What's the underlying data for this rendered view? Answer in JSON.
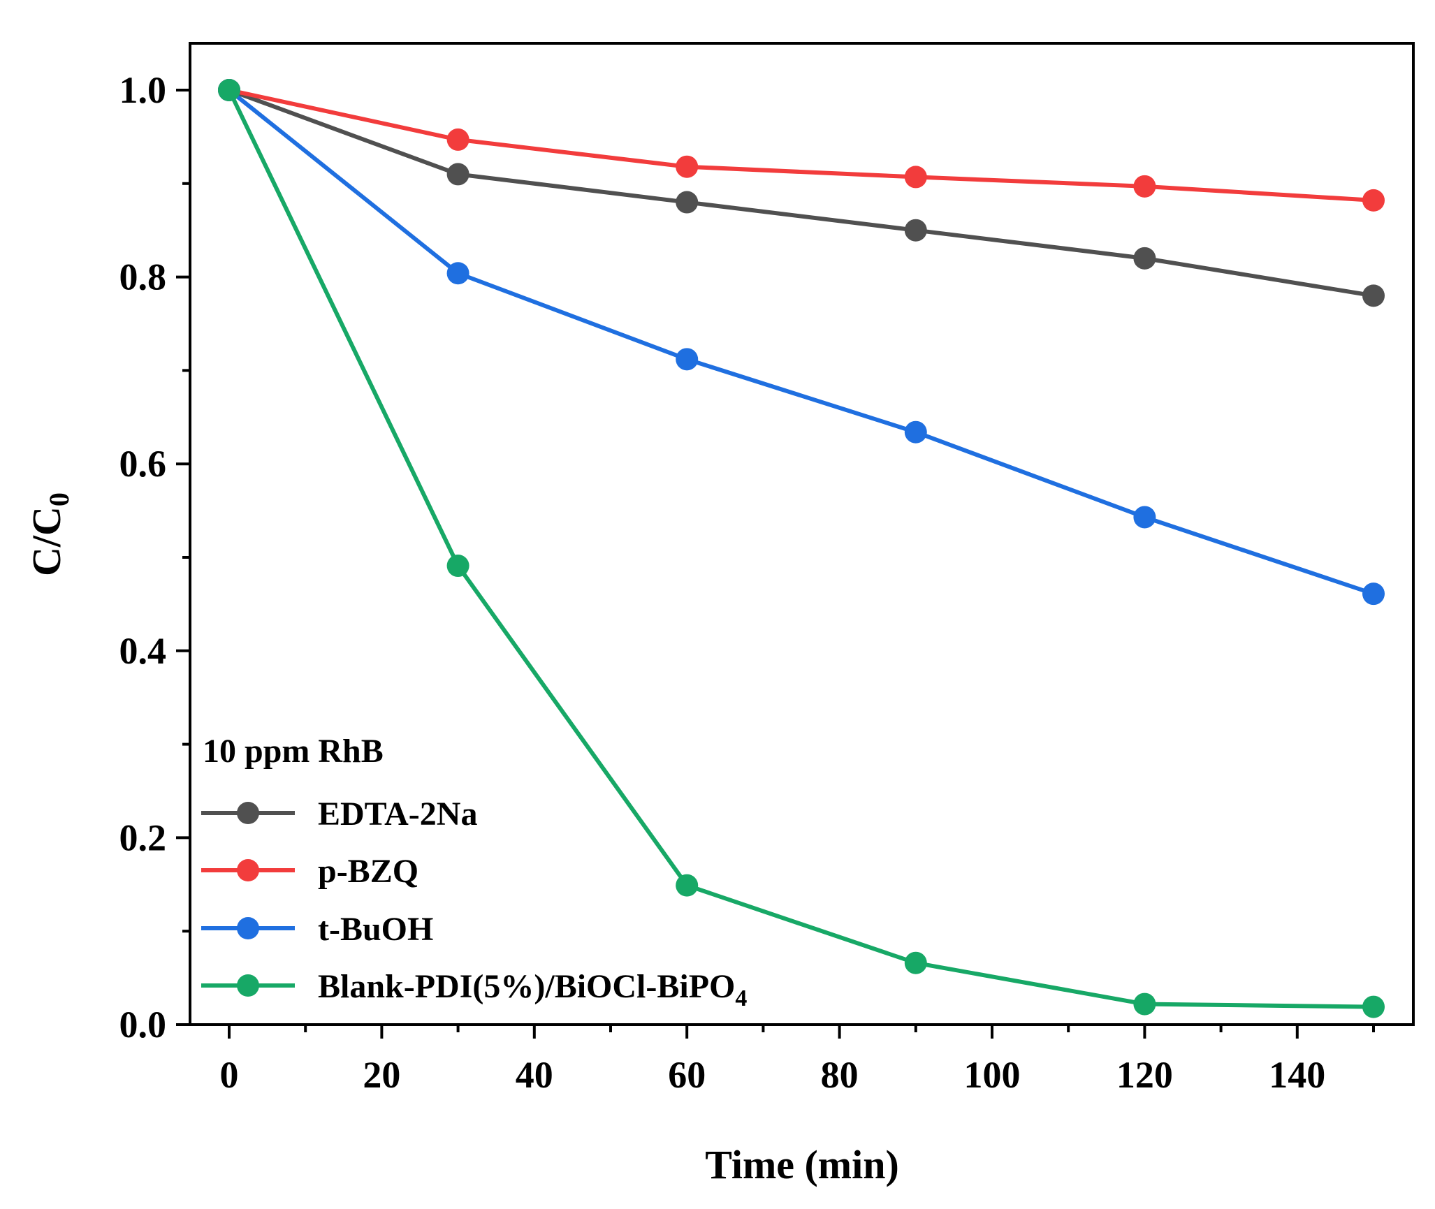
{
  "chart_data": {
    "type": "line",
    "title": "",
    "xlabel": "Time (min)",
    "ylabel_main": "C/C",
    "ylabel_sub": "0",
    "xlim": [
      -5,
      155
    ],
    "ylim": [
      0.0,
      1.05
    ],
    "xticks": [
      0,
      20,
      40,
      60,
      80,
      100,
      120,
      140
    ],
    "xtick_labels": [
      "0",
      "20",
      "40",
      "60",
      "80",
      "100",
      "120",
      "140"
    ],
    "yticks": [
      0.0,
      0.2,
      0.4,
      0.6,
      0.8,
      1.0
    ],
    "ytick_labels": [
      "0.0",
      "0.2",
      "0.4",
      "0.6",
      "0.8",
      "1.0"
    ],
    "x": [
      0,
      30,
      60,
      90,
      120,
      150
    ],
    "legend_title": "10 ppm RhB",
    "legend_position": "bottom-left",
    "series": [
      {
        "name": "EDTA-2Na",
        "color": "#505050",
        "values": [
          1.0,
          0.91,
          0.88,
          0.85,
          0.82,
          0.78
        ]
      },
      {
        "name": "p-BZQ",
        "color": "#f23c3c",
        "values": [
          1.0,
          0.947,
          0.918,
          0.907,
          0.897,
          0.882
        ]
      },
      {
        "name": "t-BuOH",
        "color": "#1f6fe0",
        "values": [
          1.0,
          0.804,
          0.712,
          0.634,
          0.543,
          0.461
        ]
      },
      {
        "name": "Blank-PDI(5%)/BiOCl-BiPO",
        "name_sub": "4",
        "color": "#17a866",
        "values": [
          1.0,
          0.491,
          0.149,
          0.066,
          0.022,
          0.019
        ]
      }
    ]
  }
}
